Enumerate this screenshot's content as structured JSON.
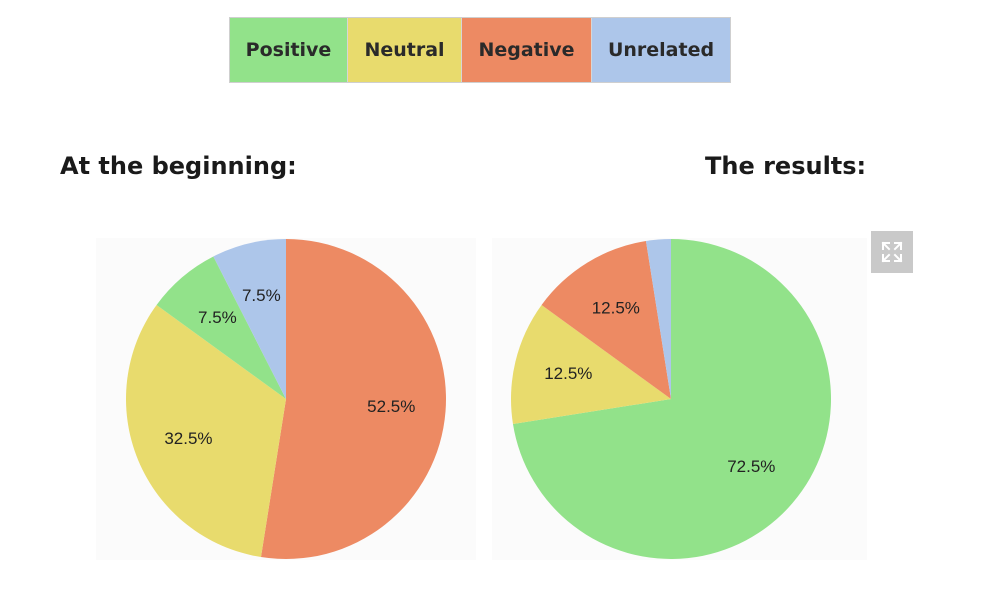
{
  "legend": [
    {
      "label": "Positive",
      "color": "#92e28a"
    },
    {
      "label": "Neutral",
      "color": "#e8db6d"
    },
    {
      "label": "Negative",
      "color": "#ed8a63"
    },
    {
      "label": "Unrelated",
      "color": "#adc6ea"
    }
  ],
  "expand_icon": "expand-arrows-icon",
  "chart_data": [
    {
      "type": "pie",
      "title": "At the beginning:",
      "categories": [
        "Negative",
        "Neutral",
        "Positive",
        "Unrelated"
      ],
      "values": [
        52.5,
        32.5,
        7.5,
        7.5
      ],
      "labels": [
        "52.5%",
        "32.5%",
        "7.5%",
        "7.5%"
      ],
      "colors": [
        "#ed8a63",
        "#e8db6d",
        "#92e28a",
        "#adc6ea"
      ],
      "start": "top",
      "direction": "clockwise"
    },
    {
      "type": "pie",
      "title": "The results:",
      "categories": [
        "Positive",
        "Neutral",
        "Negative",
        "Unrelated"
      ],
      "values": [
        72.5,
        12.5,
        12.5,
        2.5
      ],
      "labels": [
        "72.5%",
        "12.5%",
        "12.5%",
        ""
      ],
      "colors": [
        "#92e28a",
        "#e8db6d",
        "#ed8a63",
        "#adc6ea"
      ],
      "start": "top",
      "direction": "clockwise"
    }
  ]
}
